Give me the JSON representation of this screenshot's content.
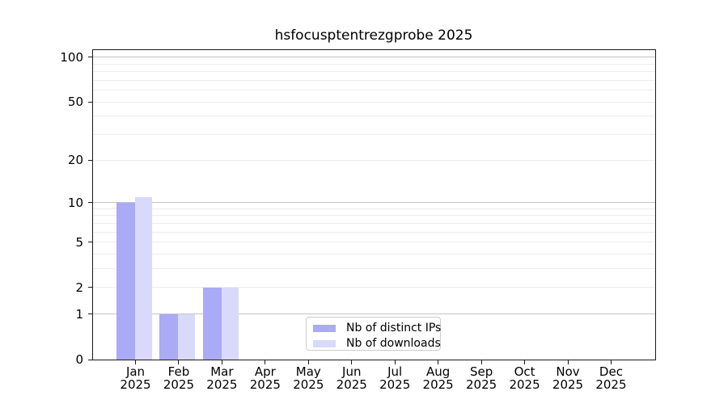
{
  "chart_data": {
    "type": "bar",
    "title": "hsfocusptentrezgprobe 2025",
    "categories": [
      "Jan",
      "Feb",
      "Mar",
      "Apr",
      "May",
      "Jun",
      "Jul",
      "Aug",
      "Sep",
      "Oct",
      "Nov",
      "Dec"
    ],
    "year": "2025",
    "series": [
      {
        "name": "Nb of distinct IPs",
        "color": "#aaaaf7",
        "values": [
          10,
          1,
          2,
          0,
          0,
          0,
          0,
          0,
          0,
          0,
          0,
          0
        ]
      },
      {
        "name": "Nb of downloads",
        "color": "#d9d9fb",
        "values": [
          11,
          1,
          2,
          0,
          0,
          0,
          0,
          0,
          0,
          0,
          0,
          0
        ]
      }
    ],
    "xlabel": "",
    "ylabel": "",
    "y_scale": "log1p",
    "y_ticks": [
      0,
      1,
      2,
      5,
      10,
      20,
      50,
      100
    ],
    "ylim": [
      0,
      113
    ],
    "grid": {
      "minor_values": [
        2,
        3,
        4,
        5,
        6,
        7,
        8,
        9,
        20,
        30,
        40,
        50,
        60,
        70,
        80,
        90
      ],
      "major_values": [
        1,
        10,
        100
      ],
      "minor_color": "#ececec",
      "major_color": "#c4c4c4"
    },
    "legend": {
      "position": "lower-center",
      "entries": [
        "Nb of distinct IPs",
        "Nb of downloads"
      ]
    },
    "axis_color": "#1a1a1a",
    "background": "#ffffff"
  }
}
